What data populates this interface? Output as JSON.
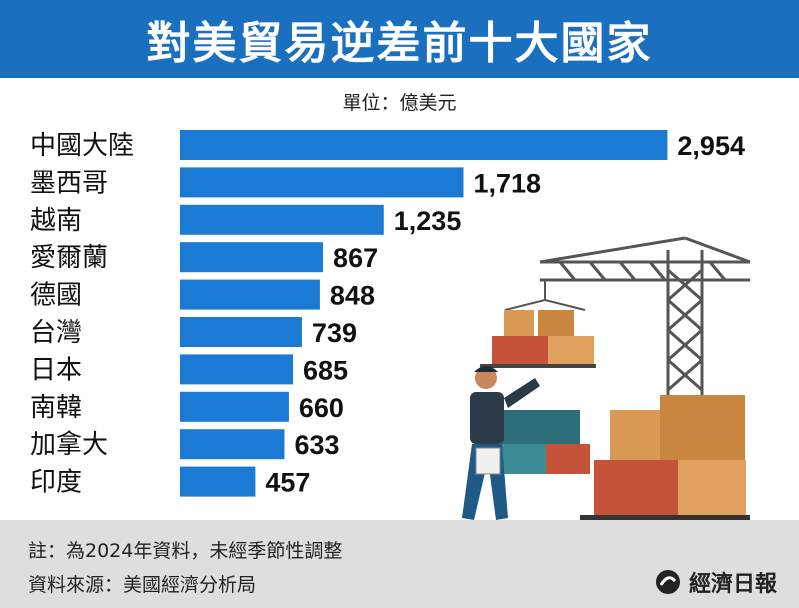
{
  "title": "對美貿易逆差前十大國家",
  "unit_label": "單位：億美元",
  "chart_data": {
    "type": "bar",
    "orientation": "horizontal",
    "categories": [
      "中國大陸",
      "墨西哥",
      "越南",
      "愛爾蘭",
      "德國",
      "台灣",
      "日本",
      "南韓",
      "加拿大",
      "印度"
    ],
    "values": [
      2954,
      1718,
      1235,
      867,
      848,
      739,
      685,
      660,
      633,
      457
    ],
    "value_labels": [
      "2,954",
      "1,718",
      "1,235",
      "867",
      "848",
      "739",
      "685",
      "660",
      "633",
      "457"
    ],
    "bar_color": "#1a7ad4",
    "grid": false,
    "legend": "none"
  },
  "footer": {
    "note": "註：為2024年資料，未經季節性調整",
    "source": "資料來源：美國經濟分析局",
    "brand": "經濟日報"
  },
  "colors": {
    "title_background": "#1a6fbf",
    "footer_background": "#dedede"
  }
}
